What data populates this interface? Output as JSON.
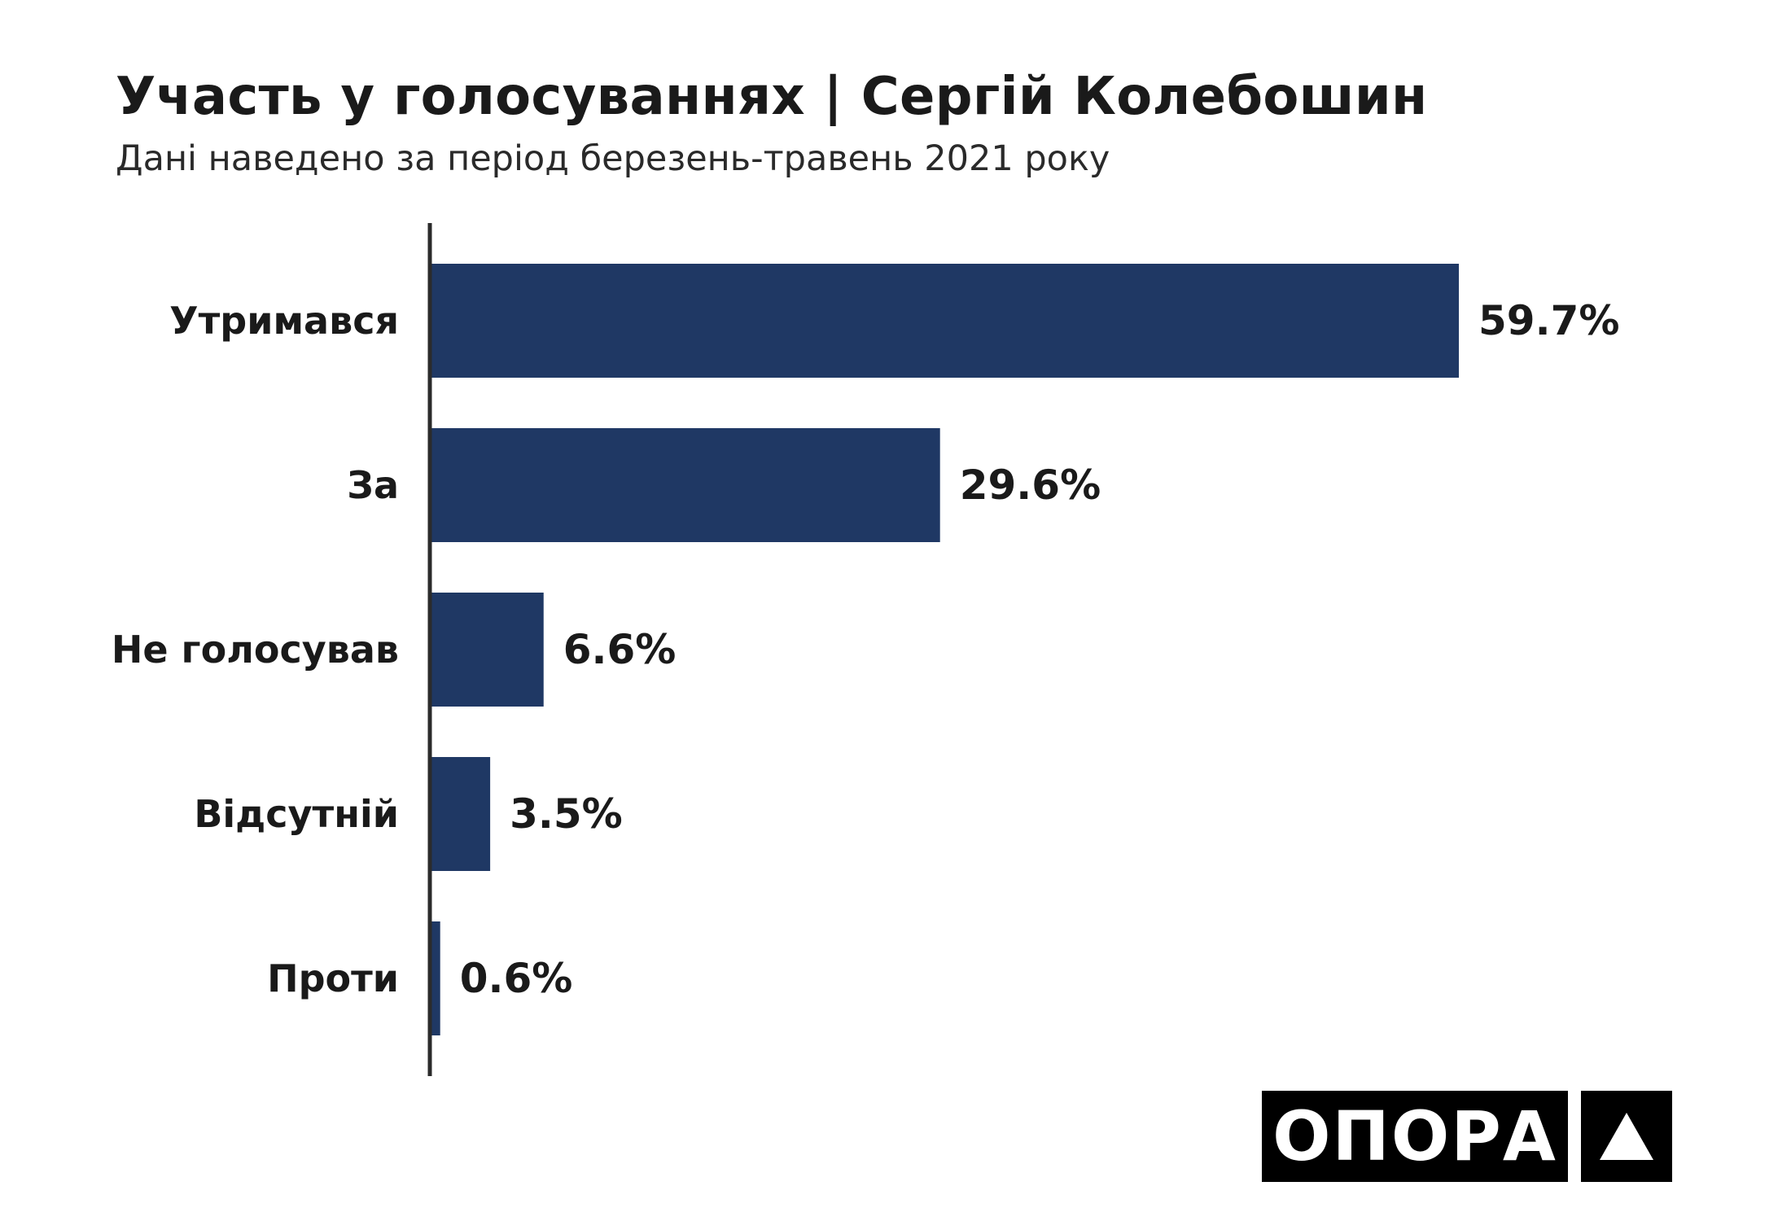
{
  "header": {
    "title": "Участь у голосуваннях | Сергій Колебошин",
    "subtitle": "Дані наведено за період березень-травень 2021 року"
  },
  "chart_data": {
    "type": "bar",
    "orientation": "horizontal",
    "categories": [
      "Утримався",
      "За",
      "Не голосував",
      "Відсутній",
      "Проти"
    ],
    "values": [
      59.7,
      29.6,
      6.6,
      3.5,
      0.6
    ],
    "value_labels": [
      "59.7%",
      "29.6%",
      "6.6%",
      "3.5%",
      "0.6%"
    ],
    "unit": "%",
    "xlim": [
      0,
      60
    ],
    "grid": false,
    "legend": "none",
    "bar_color": "#1f3864"
  },
  "logo": {
    "text": "ОПОРА",
    "mark_icon": "triangle-icon"
  }
}
